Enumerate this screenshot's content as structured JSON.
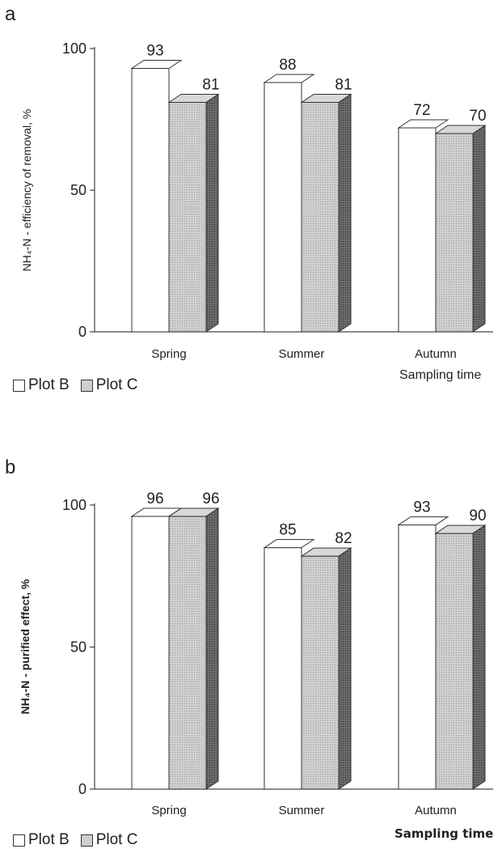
{
  "chart_data": [
    {
      "panel_label": "a",
      "type": "bar",
      "categories": [
        "Spring",
        "Summer",
        "Autumn"
      ],
      "series": [
        {
          "name": "Plot B",
          "values": [
            93,
            88,
            72
          ]
        },
        {
          "name": "Plot C",
          "values": [
            81,
            81,
            70
          ]
        }
      ],
      "ylabel": "NH₄-N - efficiency of removal, %",
      "xlabel": "Sampling time",
      "yticks": [
        "0",
        "50",
        "100"
      ],
      "ylim": [
        0,
        100
      ],
      "legend_position": "bottom-left",
      "colors": {
        "Plot B": "#ffffff",
        "Plot C": "#cfcfcf"
      }
    },
    {
      "panel_label": "b",
      "type": "bar",
      "categories": [
        "Spring",
        "Summer",
        "Autumn"
      ],
      "series": [
        {
          "name": "Plot B",
          "values": [
            96,
            85,
            93
          ]
        },
        {
          "name": "Plot C",
          "values": [
            96,
            82,
            90
          ]
        }
      ],
      "ylabel": "NH₄-N - purified effect, %",
      "xlabel": "Sampling time",
      "yticks": [
        "0",
        "50",
        "100"
      ],
      "ylim": [
        0,
        100
      ],
      "legend_position": "bottom-left",
      "colors": {
        "Plot B": "#ffffff",
        "Plot C": "#cfcfcf"
      }
    }
  ]
}
